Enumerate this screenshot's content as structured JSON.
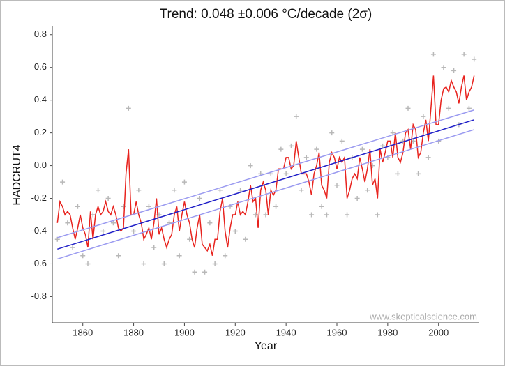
{
  "chart_data": {
    "type": "line",
    "title": "Trend: 0.048 ±0.006 °C/decade (2σ)",
    "x_label": "Year",
    "y_label": "HADCRUT4",
    "watermark": "www.skepticalscience.com",
    "xlim": [
      1848,
      2016
    ],
    "ylim": [
      -0.96,
      0.85
    ],
    "xticks": [
      1860,
      1880,
      1900,
      1920,
      1940,
      1960,
      1980,
      2000
    ],
    "yticks": [
      -0.8,
      -0.6,
      -0.4,
      -0.2,
      {
        "value": 0,
        "label": "0.0"
      },
      0.2,
      0.4,
      0.6,
      0.8
    ],
    "grid": false,
    "series": [
      {
        "style": "markers",
        "color": "#b8b8b8",
        "x": [
          1850,
          1852,
          1854,
          1856,
          1858,
          1860,
          1862,
          1864,
          1866,
          1868,
          1870,
          1872,
          1874,
          1876,
          1878,
          1880,
          1882,
          1884,
          1886,
          1888,
          1890,
          1892,
          1894,
          1896,
          1898,
          1900,
          1902,
          1904,
          1906,
          1908,
          1910,
          1912,
          1914,
          1916,
          1918,
          1920,
          1922,
          1924,
          1926,
          1928,
          1930,
          1932,
          1934,
          1936,
          1938,
          1940,
          1942,
          1944,
          1946,
          1948,
          1950,
          1952,
          1954,
          1956,
          1958,
          1960,
          1962,
          1964,
          1966,
          1968,
          1970,
          1972,
          1974,
          1976,
          1978,
          1980,
          1982,
          1984,
          1986,
          1988,
          1990,
          1992,
          1994,
          1996,
          1998,
          2000,
          2002,
          2004,
          2006,
          2008,
          2010,
          2012,
          2014
        ],
        "values": [
          -0.45,
          -0.1,
          -0.35,
          -0.5,
          -0.25,
          -0.55,
          -0.6,
          -0.3,
          -0.15,
          -0.4,
          -0.2,
          -0.35,
          -0.55,
          -0.25,
          0.35,
          -0.4,
          -0.15,
          -0.6,
          -0.25,
          -0.5,
          -0.3,
          -0.6,
          -0.35,
          -0.15,
          -0.55,
          -0.1,
          -0.45,
          -0.65,
          -0.2,
          -0.65,
          -0.35,
          -0.6,
          -0.15,
          -0.55,
          -0.25,
          -0.4,
          -0.15,
          -0.45,
          0.0,
          -0.3,
          -0.05,
          -0.3,
          -0.05,
          -0.25,
          0.1,
          -0.05,
          0.12,
          0.3,
          -0.15,
          0.05,
          -0.3,
          0.1,
          -0.25,
          -0.3,
          0.2,
          -0.12,
          0.15,
          -0.3,
          0.05,
          -0.2,
          0.1,
          -0.15,
          0.0,
          -0.3,
          0.12,
          0.05,
          0.2,
          -0.05,
          0.15,
          0.35,
          0.15,
          -0.05,
          0.3,
          0.05,
          0.68,
          0.15,
          0.6,
          0.35,
          0.58,
          0.25,
          0.68,
          0.35,
          0.65
        ]
      },
      {
        "style": "line",
        "color": "#e8231e",
        "x": [
          1850,
          1851,
          1852,
          1853,
          1854,
          1855,
          1856,
          1857,
          1858,
          1859,
          1860,
          1861,
          1862,
          1863,
          1864,
          1865,
          1866,
          1867,
          1868,
          1869,
          1870,
          1871,
          1872,
          1873,
          1874,
          1875,
          1876,
          1877,
          1878,
          1879,
          1880,
          1881,
          1882,
          1883,
          1884,
          1885,
          1886,
          1887,
          1888,
          1889,
          1890,
          1891,
          1892,
          1893,
          1894,
          1895,
          1896,
          1897,
          1898,
          1899,
          1900,
          1901,
          1902,
          1903,
          1904,
          1905,
          1906,
          1907,
          1908,
          1909,
          1910,
          1911,
          1912,
          1913,
          1914,
          1915,
          1916,
          1917,
          1918,
          1919,
          1920,
          1921,
          1922,
          1923,
          1924,
          1925,
          1926,
          1927,
          1928,
          1929,
          1930,
          1931,
          1932,
          1933,
          1934,
          1935,
          1936,
          1937,
          1938,
          1939,
          1940,
          1941,
          1942,
          1943,
          1944,
          1945,
          1946,
          1947,
          1948,
          1949,
          1950,
          1951,
          1952,
          1953,
          1954,
          1955,
          1956,
          1957,
          1958,
          1959,
          1960,
          1961,
          1962,
          1963,
          1964,
          1965,
          1966,
          1967,
          1968,
          1969,
          1970,
          1971,
          1972,
          1973,
          1974,
          1975,
          1976,
          1977,
          1978,
          1979,
          1980,
          1981,
          1982,
          1983,
          1984,
          1985,
          1986,
          1987,
          1988,
          1989,
          1990,
          1991,
          1992,
          1993,
          1994,
          1995,
          1996,
          1997,
          1998,
          1999,
          2000,
          2001,
          2002,
          2003,
          2004,
          2005,
          2006,
          2007,
          2008,
          2009,
          2010,
          2011,
          2012,
          2013,
          2014
        ],
        "values": [
          -0.35,
          -0.22,
          -0.25,
          -0.3,
          -0.28,
          -0.3,
          -0.38,
          -0.45,
          -0.38,
          -0.3,
          -0.38,
          -0.42,
          -0.5,
          -0.28,
          -0.45,
          -0.3,
          -0.25,
          -0.3,
          -0.28,
          -0.22,
          -0.28,
          -0.3,
          -0.25,
          -0.3,
          -0.38,
          -0.4,
          -0.38,
          -0.05,
          0.1,
          -0.3,
          -0.3,
          -0.22,
          -0.3,
          -0.35,
          -0.45,
          -0.42,
          -0.38,
          -0.45,
          -0.35,
          -0.2,
          -0.42,
          -0.38,
          -0.45,
          -0.5,
          -0.45,
          -0.42,
          -0.3,
          -0.25,
          -0.4,
          -0.3,
          -0.22,
          -0.3,
          -0.35,
          -0.45,
          -0.5,
          -0.38,
          -0.3,
          -0.48,
          -0.5,
          -0.52,
          -0.48,
          -0.55,
          -0.45,
          -0.45,
          -0.28,
          -0.2,
          -0.4,
          -0.5,
          -0.38,
          -0.3,
          -0.3,
          -0.22,
          -0.3,
          -0.28,
          -0.3,
          -0.22,
          -0.12,
          -0.22,
          -0.2,
          -0.38,
          -0.15,
          -0.1,
          -0.15,
          -0.3,
          -0.15,
          -0.18,
          -0.15,
          -0.02,
          -0.02,
          -0.02,
          0.05,
          0.05,
          -0.02,
          0.0,
          0.15,
          0.05,
          -0.05,
          -0.05,
          -0.05,
          -0.1,
          -0.18,
          -0.05,
          0.0,
          0.08,
          -0.12,
          -0.15,
          -0.2,
          0.02,
          0.08,
          0.05,
          -0.02,
          0.05,
          0.02,
          0.05,
          -0.2,
          -0.15,
          -0.08,
          -0.05,
          -0.08,
          0.05,
          -0.02,
          -0.1,
          -0.02,
          0.1,
          -0.12,
          -0.08,
          -0.2,
          0.1,
          0.02,
          0.08,
          0.15,
          0.15,
          0.05,
          0.2,
          0.05,
          0.02,
          0.08,
          0.2,
          0.22,
          0.1,
          0.25,
          0.22,
          0.05,
          0.08,
          0.2,
          0.28,
          0.15,
          0.35,
          0.55,
          0.25,
          0.25,
          0.4,
          0.47,
          0.48,
          0.45,
          0.52,
          0.48,
          0.45,
          0.38,
          0.48,
          0.55,
          0.4,
          0.45,
          0.48,
          0.55
        ]
      },
      {
        "style": "line",
        "color": "#9a9af0",
        "x": [
          1850,
          2014
        ],
        "values": [
          -0.44,
          0.34
        ]
      },
      {
        "style": "line",
        "color": "#9a9af0",
        "x": [
          1850,
          2014
        ],
        "values": [
          -0.57,
          0.22
        ]
      },
      {
        "style": "line",
        "color": "#2020c8",
        "x": [
          1850,
          2014
        ],
        "values": [
          -0.51,
          0.28
        ]
      }
    ]
  }
}
